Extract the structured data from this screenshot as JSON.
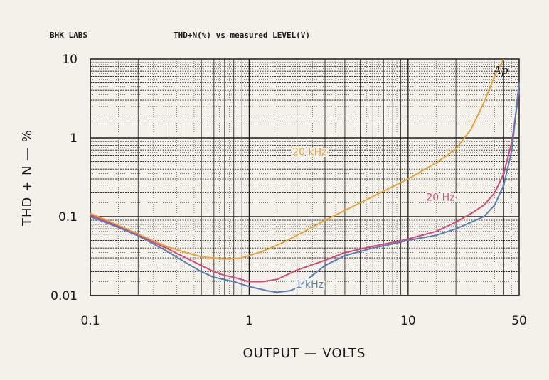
{
  "header": {
    "left": "BHK LABS",
    "center": "THD+N(%) vs measured LEVEL(V)"
  },
  "corner_mark": "Ap",
  "chart_data": {
    "type": "line",
    "title": "THD+N(%) vs measured LEVEL(V)",
    "xlabel": "OUTPUT — VOLTS",
    "ylabel": "THD + N — %",
    "x_scale": "log",
    "y_scale": "log",
    "xlim": [
      0.1,
      50
    ],
    "ylim": [
      0.01,
      10
    ],
    "x_ticks": [
      {
        "value": 0.1,
        "label": "0.1"
      },
      {
        "value": 1,
        "label": "1"
      },
      {
        "value": 10,
        "label": "10"
      },
      {
        "value": 50,
        "label": "50"
      }
    ],
    "y_ticks": [
      {
        "value": 10,
        "label": "10"
      },
      {
        "value": 1,
        "label": "1"
      },
      {
        "value": 0.1,
        "label": "0.1"
      },
      {
        "value": 0.01,
        "label": "0.01"
      }
    ],
    "grid": true,
    "series": [
      {
        "name": "20 kHz",
        "color": "#e8a23a",
        "label_at": [
          2.4,
          0.6
        ],
        "points": [
          [
            0.1,
            0.11
          ],
          [
            0.15,
            0.078
          ],
          [
            0.2,
            0.06
          ],
          [
            0.3,
            0.042
          ],
          [
            0.4,
            0.035
          ],
          [
            0.5,
            0.031
          ],
          [
            0.7,
            0.029
          ],
          [
            0.9,
            0.03
          ],
          [
            1.2,
            0.036
          ],
          [
            1.6,
            0.046
          ],
          [
            2.2,
            0.064
          ],
          [
            3,
            0.09
          ],
          [
            4,
            0.12
          ],
          [
            6,
            0.18
          ],
          [
            8,
            0.24
          ],
          [
            10,
            0.3
          ],
          [
            15,
            0.48
          ],
          [
            20,
            0.72
          ],
          [
            25,
            1.3
          ],
          [
            30,
            2.8
          ],
          [
            35,
            6
          ],
          [
            40,
            10
          ]
        ]
      },
      {
        "name": "20 Hz",
        "color": "#d44a7a",
        "label_at": [
          16,
          0.16
        ],
        "points": [
          [
            0.1,
            0.105
          ],
          [
            0.15,
            0.075
          ],
          [
            0.2,
            0.058
          ],
          [
            0.3,
            0.04
          ],
          [
            0.4,
            0.03
          ],
          [
            0.5,
            0.024
          ],
          [
            0.6,
            0.02
          ],
          [
            0.7,
            0.018
          ],
          [
            0.8,
            0.017
          ],
          [
            1,
            0.015
          ],
          [
            1.2,
            0.015
          ],
          [
            1.5,
            0.016
          ],
          [
            2,
            0.021
          ],
          [
            3,
            0.028
          ],
          [
            4,
            0.035
          ],
          [
            6,
            0.042
          ],
          [
            8,
            0.047
          ],
          [
            10,
            0.052
          ],
          [
            15,
            0.065
          ],
          [
            20,
            0.085
          ],
          [
            25,
            0.11
          ],
          [
            30,
            0.14
          ],
          [
            35,
            0.2
          ],
          [
            40,
            0.35
          ],
          [
            45,
            0.9
          ],
          [
            50,
            4
          ]
        ]
      },
      {
        "name": "1 kHz",
        "color": "#5a7fb8",
        "label_at": [
          2.4,
          0.0125
        ],
        "points": [
          [
            0.1,
            0.1
          ],
          [
            0.15,
            0.073
          ],
          [
            0.2,
            0.057
          ],
          [
            0.3,
            0.037
          ],
          [
            0.4,
            0.026
          ],
          [
            0.5,
            0.02
          ],
          [
            0.6,
            0.017
          ],
          [
            0.8,
            0.015
          ],
          [
            1,
            0.013
          ],
          [
            1.3,
            0.0115
          ],
          [
            1.5,
            0.011
          ],
          [
            1.8,
            0.0115
          ],
          [
            2,
            0.0125
          ],
          [
            2.5,
            0.018
          ],
          [
            3,
            0.024
          ],
          [
            4,
            0.032
          ],
          [
            6,
            0.04
          ],
          [
            8,
            0.045
          ],
          [
            10,
            0.05
          ],
          [
            15,
            0.058
          ],
          [
            20,
            0.07
          ],
          [
            25,
            0.085
          ],
          [
            30,
            0.1
          ],
          [
            35,
            0.14
          ],
          [
            40,
            0.25
          ],
          [
            45,
            0.7
          ],
          [
            50,
            5
          ]
        ]
      }
    ]
  }
}
